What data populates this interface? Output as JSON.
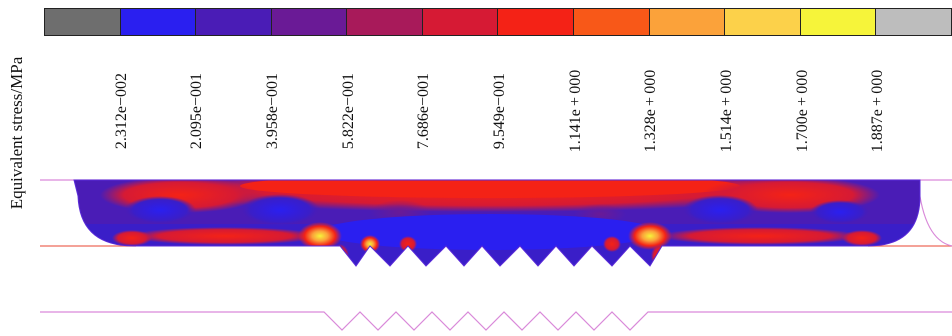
{
  "legend": {
    "title": "Equivalent stress/MPa",
    "bands": [
      {
        "name": "band-0",
        "color": "#6e6e6e"
      },
      {
        "name": "band-1",
        "color": "#2a1ff0"
      },
      {
        "name": "band-2",
        "color": "#4a1cb6"
      },
      {
        "name": "band-3",
        "color": "#6a1a96"
      },
      {
        "name": "band-4",
        "color": "#a81a5a"
      },
      {
        "name": "band-5",
        "color": "#d61a34"
      },
      {
        "name": "band-6",
        "color": "#f42216"
      },
      {
        "name": "band-7",
        "color": "#f85818"
      },
      {
        "name": "band-8",
        "color": "#fba23a"
      },
      {
        "name": "band-9",
        "color": "#fcd14a"
      },
      {
        "name": "band-10",
        "color": "#f6f43a"
      },
      {
        "name": "band-11",
        "color": "#bdbdbd"
      }
    ],
    "ticks": [
      "2.312e−002",
      "2.095e−001",
      "3.958e−001",
      "5.822e−001",
      "7.686e−001",
      "9.549e−001",
      "1.141e + 000",
      "1.328e + 000",
      "1.514e + 000",
      "1.700e + 000",
      "1.887e + 000"
    ]
  },
  "colors": {
    "outline_line": "#d989d9",
    "base_line": "#ee6a5a",
    "body_base": "#3a1ec8"
  }
}
